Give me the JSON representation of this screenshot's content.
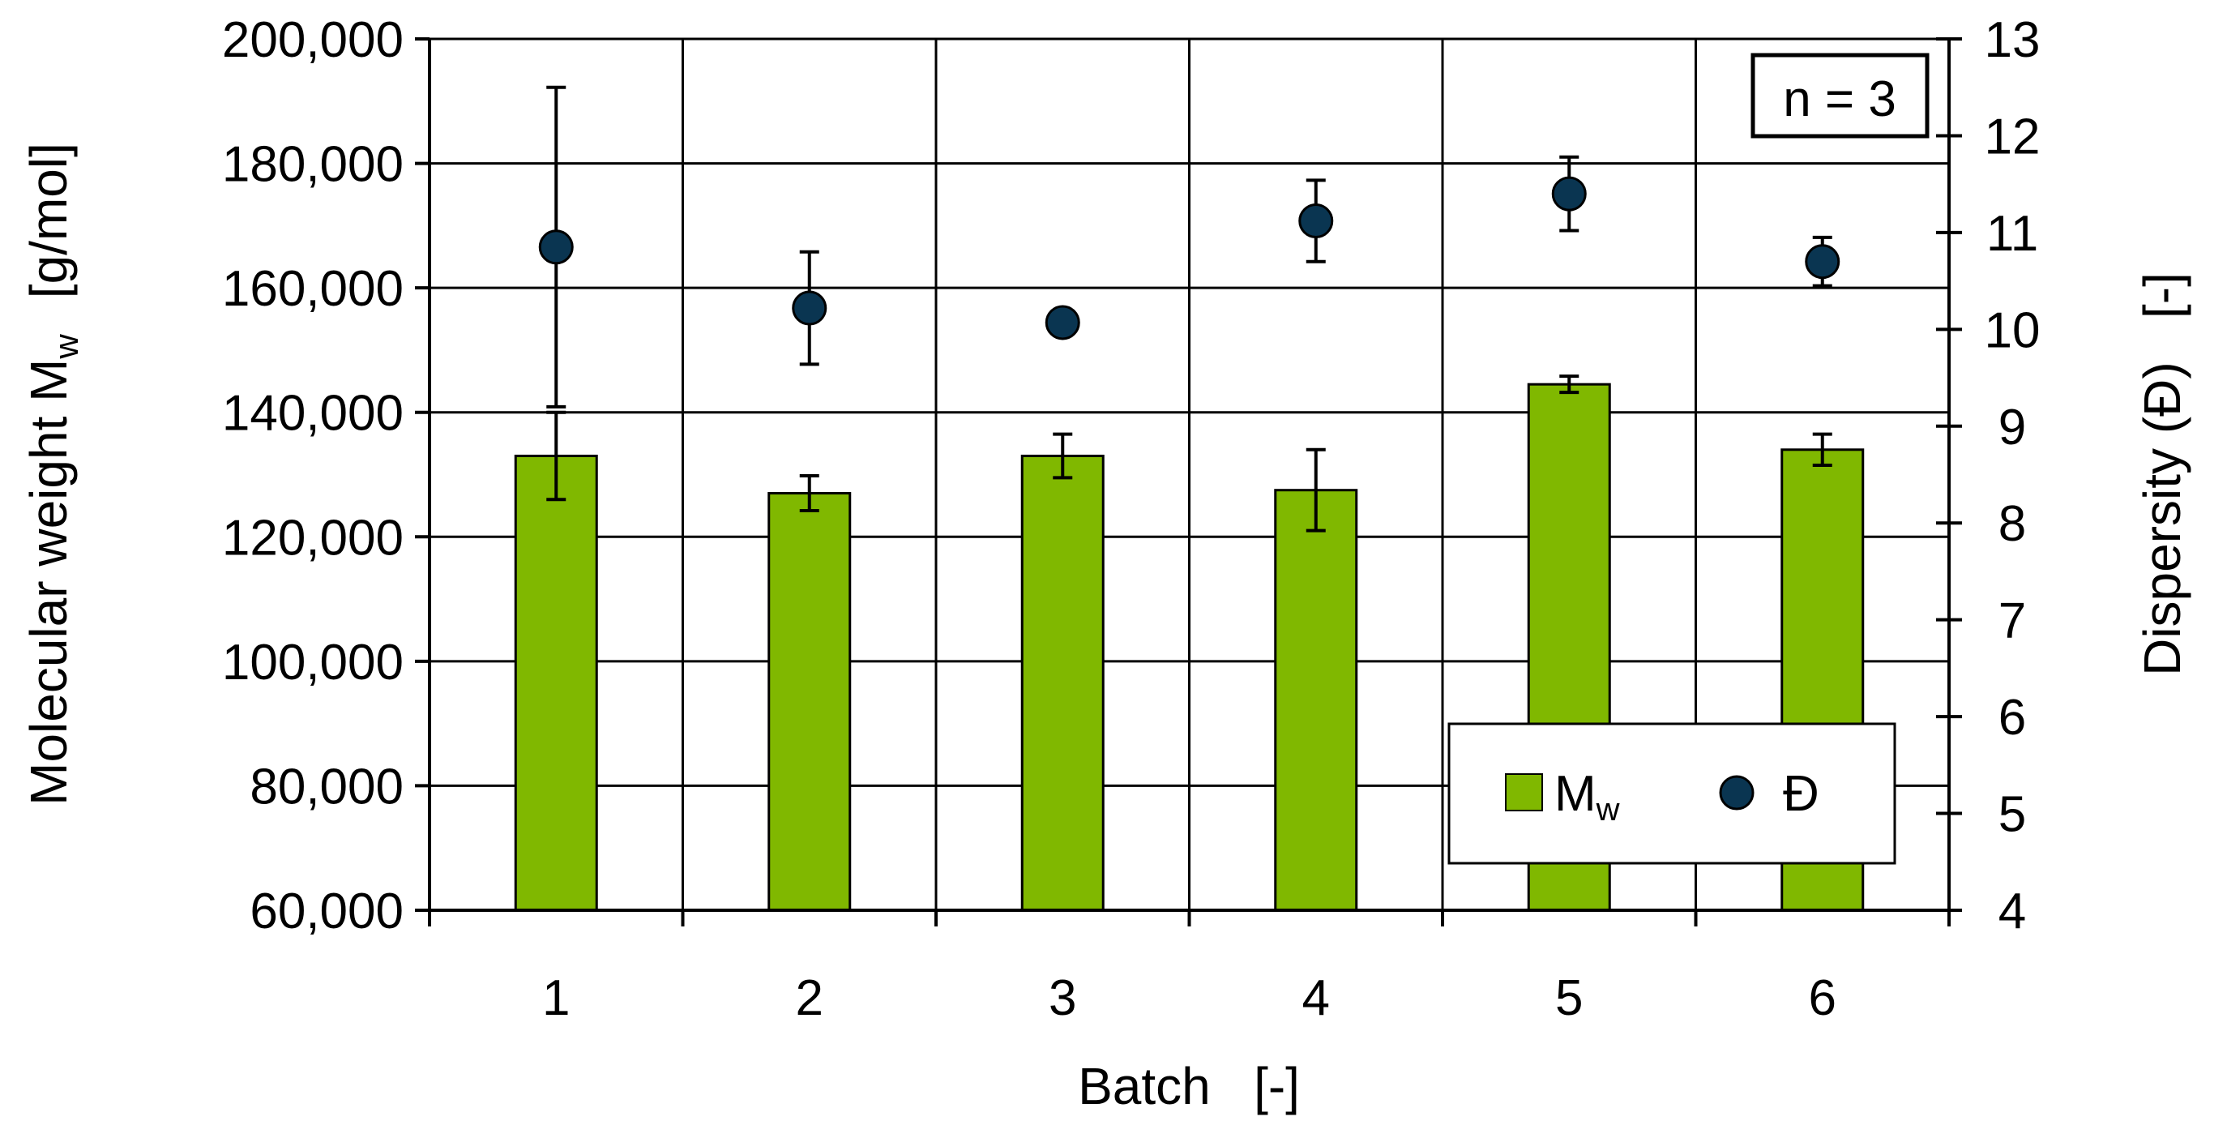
{
  "chart_data": {
    "type": "bar",
    "categories": [
      "1",
      "2",
      "3",
      "4",
      "5",
      "6"
    ],
    "series": [
      {
        "name": "Mw",
        "kind": "bar",
        "axis": "left",
        "values": [
          133000,
          127000,
          133000,
          127500,
          144500,
          134000
        ],
        "errors": [
          7000,
          2800,
          3500,
          6500,
          1300,
          2500
        ]
      },
      {
        "name": "Đ",
        "kind": "scatter",
        "axis": "right",
        "values": [
          10.85,
          10.22,
          10.07,
          11.12,
          11.4,
          10.7
        ],
        "errors": [
          1.65,
          0.58,
          0.0,
          0.42,
          0.38,
          0.25
        ]
      }
    ],
    "title": "",
    "xlabel": "Batch   [-]",
    "ylabel": "Molecular weight M",
    "ylabel_sub": "w",
    "ylabel_unit": "[g/mol]",
    "y2label": "Dispersity (Đ)   [-]",
    "ylim": [
      60000,
      200000
    ],
    "y_ticks": [
      60000,
      80000,
      100000,
      120000,
      140000,
      160000,
      180000,
      200000
    ],
    "y_tick_labels": [
      "60,000",
      "80,000",
      "100,000",
      "120,000",
      "140,000",
      "160,000",
      "180,000",
      "200,000"
    ],
    "y2lim": [
      4,
      13
    ],
    "y2_ticks": [
      4,
      5,
      6,
      7,
      8,
      9,
      10,
      11,
      12,
      13
    ],
    "y2_tick_labels": [
      "4",
      "5",
      "6",
      "7",
      "8",
      "9",
      "10",
      "11",
      "12",
      "13"
    ],
    "grid": true,
    "annotation": "n = 3",
    "legend": {
      "placement": "bottom-right",
      "mw_label": "M",
      "mw_sub": "w",
      "d_label": "Đ"
    },
    "colors": {
      "bar_fill": "#80b800",
      "bar_stroke": "#000000",
      "point_fill": "#0a3551",
      "point_stroke": "#000000",
      "grid": "#000000"
    }
  }
}
